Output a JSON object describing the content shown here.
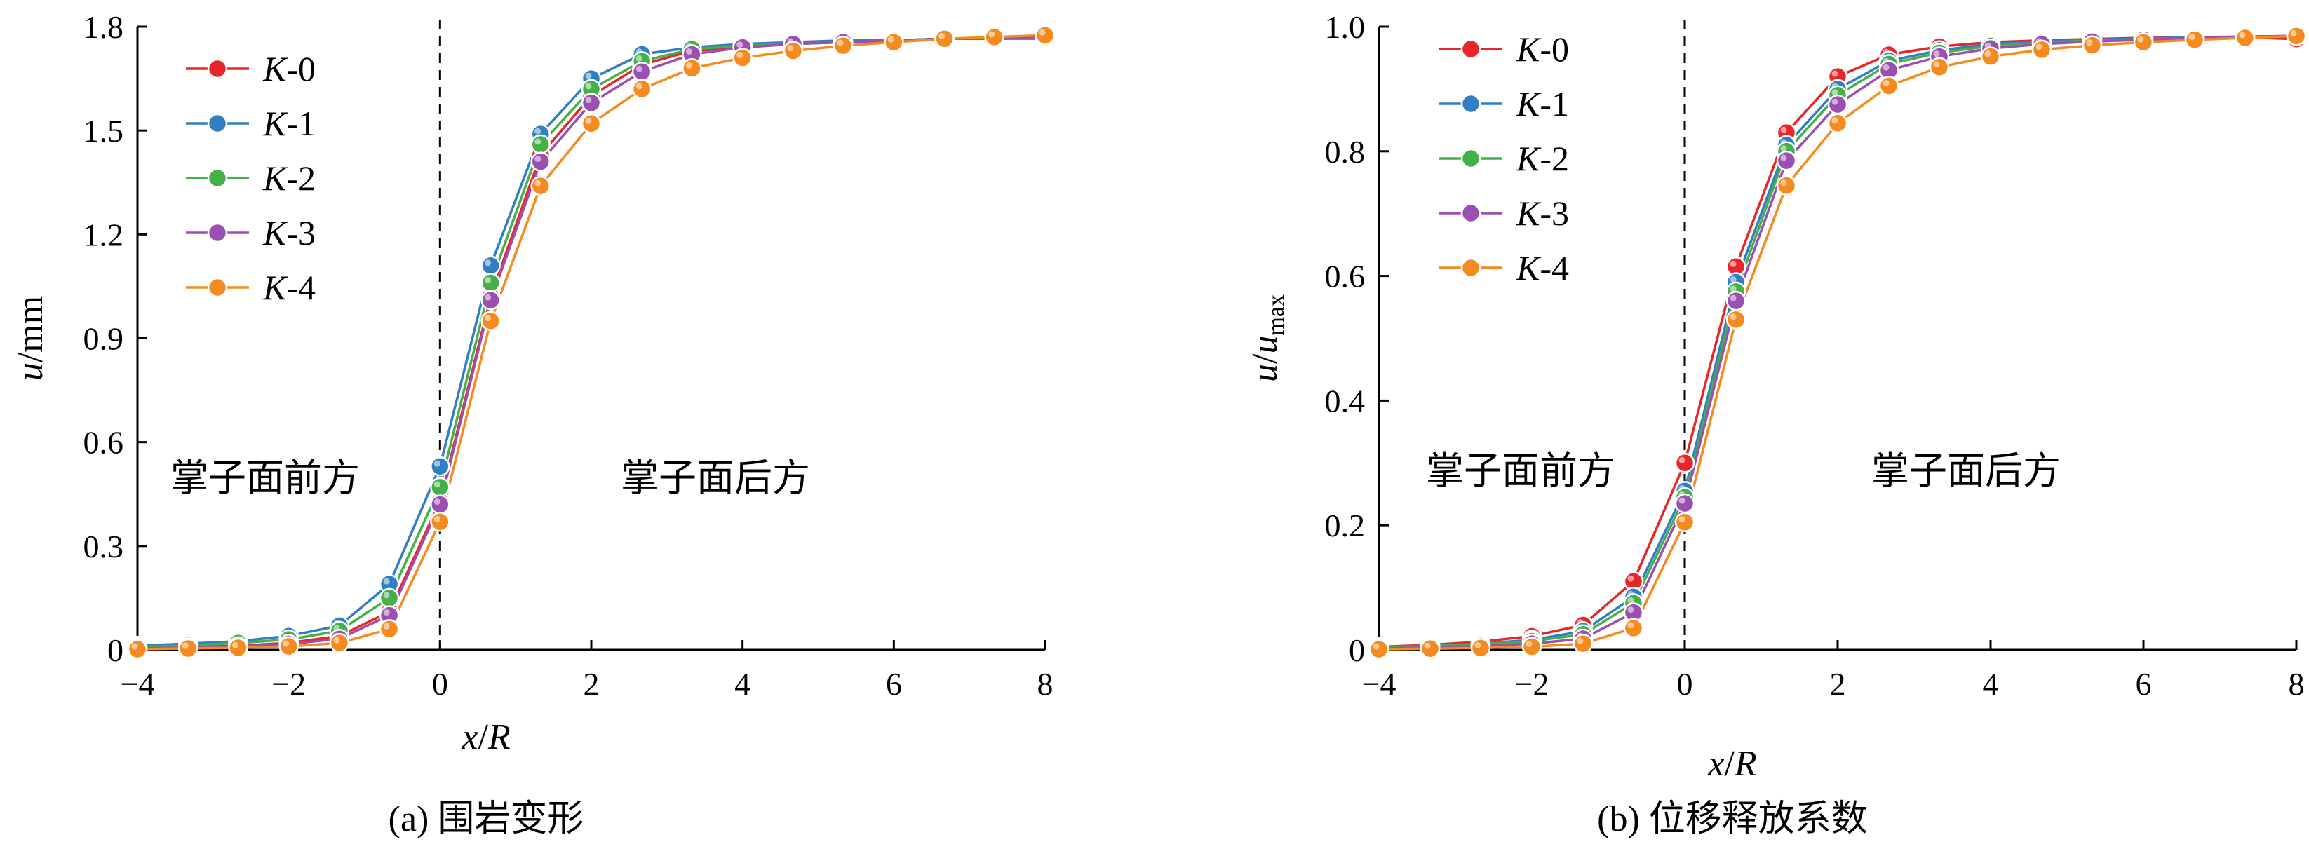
{
  "chart_data": [
    {
      "type": "line",
      "caption": "(a)  围岩变形",
      "xlabel": "x/R",
      "ylabel_main": "u",
      "ylabel_unit": "/mm",
      "xlim": [
        -4,
        8
      ],
      "ylim": [
        0,
        1.8
      ],
      "xticks": [
        -4,
        -2,
        0,
        2,
        4,
        6,
        8
      ],
      "yticks": [
        0,
        0.3,
        0.6,
        0.9,
        1.2,
        1.5,
        1.8
      ],
      "ytick_labels": [
        "0",
        "0.3",
        "0.6",
        "0.9",
        "1.2",
        "1.5",
        "1.8"
      ],
      "legend_position": "top-left",
      "annotations": [
        {
          "text": "掌子面前方",
          "side": "left"
        },
        {
          "text": "掌子面后方",
          "side": "right"
        }
      ],
      "x": [
        -4,
        -3.33,
        -2.67,
        -2,
        -1.33,
        -0.67,
        0,
        0.67,
        1.33,
        2,
        2.67,
        3.33,
        4,
        4.67,
        5.33,
        6,
        6.67,
        7.33,
        8
      ],
      "series": [
        {
          "name": "K-0",
          "color": "#e8262a",
          "values": [
            0.005,
            0.008,
            0.012,
            0.02,
            0.04,
            0.11,
            0.43,
            1.02,
            1.43,
            1.6,
            1.69,
            1.73,
            1.74,
            1.75,
            1.755,
            1.76,
            1.765,
            1.765,
            1.765
          ]
        },
        {
          "name": "K-1",
          "color": "#2f7fc2",
          "values": [
            0.012,
            0.018,
            0.025,
            0.04,
            0.07,
            0.19,
            0.53,
            1.11,
            1.49,
            1.65,
            1.72,
            1.74,
            1.75,
            1.755,
            1.76,
            1.76,
            1.765,
            1.765,
            1.765
          ]
        },
        {
          "name": "K-2",
          "color": "#44b048",
          "values": [
            0.008,
            0.013,
            0.02,
            0.03,
            0.055,
            0.15,
            0.47,
            1.06,
            1.46,
            1.62,
            1.7,
            1.735,
            1.745,
            1.75,
            1.755,
            1.76,
            1.765,
            1.765,
            1.765
          ]
        },
        {
          "name": "K-3",
          "color": "#9b4fb0",
          "values": [
            0.004,
            0.007,
            0.01,
            0.017,
            0.032,
            0.1,
            0.42,
            1.01,
            1.41,
            1.58,
            1.67,
            1.72,
            1.74,
            1.75,
            1.755,
            1.76,
            1.765,
            1.765,
            1.77
          ]
        },
        {
          "name": "K-4",
          "color": "#f58a1f",
          "values": [
            0.002,
            0.004,
            0.006,
            0.01,
            0.02,
            0.06,
            0.37,
            0.95,
            1.34,
            1.52,
            1.62,
            1.68,
            1.71,
            1.73,
            1.745,
            1.755,
            1.765,
            1.77,
            1.775
          ]
        }
      ]
    },
    {
      "type": "line",
      "caption": "(b)  位移释放系数",
      "xlabel": "x/R",
      "ylabel_main": "u/u",
      "ylabel_sub": "max",
      "xlim": [
        -4,
        8
      ],
      "ylim": [
        0,
        1.0
      ],
      "xticks": [
        -4,
        -2,
        0,
        2,
        4,
        6,
        8
      ],
      "yticks": [
        0,
        0.2,
        0.4,
        0.6,
        0.8,
        1.0
      ],
      "ytick_labels": [
        "0",
        "0.2",
        "0.4",
        "0.6",
        "0.8",
        "1.0"
      ],
      "legend_position": "top-left",
      "annotations": [
        {
          "text": "掌子面前方",
          "side": "left"
        },
        {
          "text": "掌子面后方",
          "side": "right"
        }
      ],
      "x": [
        -4,
        -3.33,
        -2.67,
        -2,
        -1.33,
        -0.67,
        0,
        0.67,
        1.33,
        2,
        2.67,
        3.33,
        4,
        4.67,
        5.33,
        6,
        6.67,
        7.33,
        8
      ],
      "series": [
        {
          "name": "K-0",
          "color": "#e8262a",
          "values": [
            0.005,
            0.008,
            0.013,
            0.022,
            0.04,
            0.11,
            0.3,
            0.615,
            0.83,
            0.92,
            0.955,
            0.968,
            0.975,
            0.978,
            0.98,
            0.982,
            0.983,
            0.983,
            0.98
          ]
        },
        {
          "name": "K-1",
          "color": "#2f7fc2",
          "values": [
            0.004,
            0.007,
            0.01,
            0.016,
            0.03,
            0.085,
            0.255,
            0.59,
            0.81,
            0.9,
            0.945,
            0.962,
            0.972,
            0.976,
            0.979,
            0.981,
            0.983,
            0.984,
            0.985
          ]
        },
        {
          "name": "K-2",
          "color": "#44b048",
          "values": [
            0.003,
            0.006,
            0.009,
            0.014,
            0.025,
            0.075,
            0.245,
            0.575,
            0.8,
            0.89,
            0.94,
            0.958,
            0.969,
            0.974,
            0.978,
            0.98,
            0.982,
            0.984,
            0.985
          ]
        },
        {
          "name": "K-3",
          "color": "#9b4fb0",
          "values": [
            0.002,
            0.004,
            0.006,
            0.01,
            0.018,
            0.06,
            0.235,
            0.56,
            0.785,
            0.875,
            0.93,
            0.952,
            0.965,
            0.972,
            0.976,
            0.979,
            0.982,
            0.984,
            0.985
          ]
        },
        {
          "name": "K-4",
          "color": "#f58a1f",
          "values": [
            0.001,
            0.002,
            0.003,
            0.005,
            0.01,
            0.035,
            0.205,
            0.53,
            0.745,
            0.845,
            0.905,
            0.935,
            0.952,
            0.963,
            0.97,
            0.975,
            0.979,
            0.982,
            0.985
          ]
        }
      ]
    }
  ]
}
